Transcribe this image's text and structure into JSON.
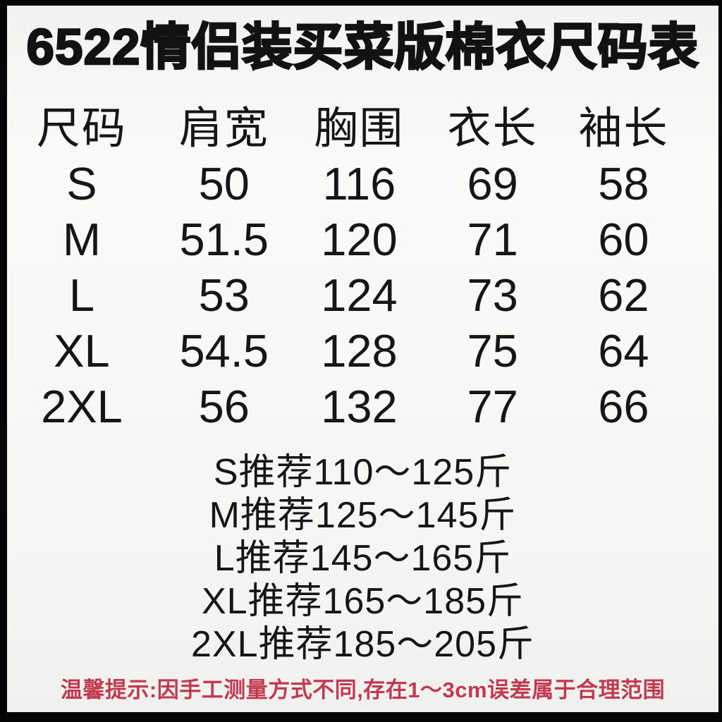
{
  "title": "6522情侣装买菜版棉衣尺码表",
  "table": {
    "headers": [
      "尺码",
      "肩宽",
      "胸围",
      "衣长",
      "袖长"
    ],
    "rows": [
      [
        "S",
        "50",
        "116",
        "69",
        "58"
      ],
      [
        "M",
        "51.5",
        "120",
        "71",
        "60"
      ],
      [
        "L",
        "53",
        "124",
        "73",
        "62"
      ],
      [
        "XL",
        "54.5",
        "128",
        "75",
        "64"
      ],
      [
        "2XL",
        "56",
        "132",
        "77",
        "66"
      ]
    ]
  },
  "recommendations": [
    "S推荐110～125斤",
    "M推荐125～145斤",
    "L推荐145～165斤",
    "XL推荐165～185斤",
    "2XL推荐185～205斤"
  ],
  "footer_note": "温馨提示:因手工测量方式不同,存在1～3cm误差属于合理范围",
  "colors": {
    "note_red": "#c13a4f",
    "text": "#161616",
    "page_background": "#f7f7f6",
    "frame": "#050505"
  }
}
